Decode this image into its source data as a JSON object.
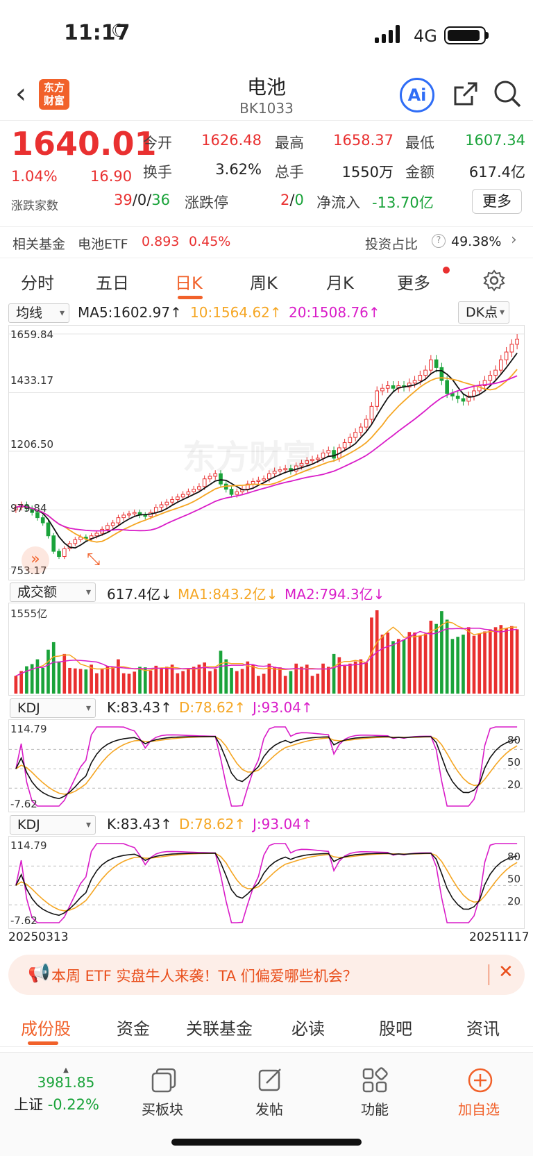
{
  "status_bar": {
    "time": "11:17",
    "network": "4G"
  },
  "nav": {
    "logo_line1": "东方",
    "logo_line2": "财富",
    "title": "电池",
    "code": "BK1033",
    "ai_label": "Ai"
  },
  "quote": {
    "price": "1640.01",
    "change_pct": "1.04%",
    "change": "16.90",
    "open_label": "今开",
    "open": "1626.48",
    "high_label": "最高",
    "high": "1658.37",
    "low_label": "最低",
    "low": "1607.34",
    "turnover_label": "换手",
    "turnover": "3.62%",
    "volume_label": "总手",
    "volume": "1550万",
    "amount_label": "金额",
    "amount": "617.4亿",
    "updown_label": "涨跌家数",
    "up_count": "39",
    "flat_count": "0",
    "down_count": "36",
    "sep": "/",
    "limit_label": "涨跌停",
    "limit_up": "2",
    "limit_down": "0",
    "netflow_label": "净流入",
    "netflow": "-13.70亿",
    "more_label": "更多"
  },
  "fund_row": {
    "label": "相关基金",
    "fund_name": "电池ETF",
    "fund_price": "0.893",
    "fund_pct": "0.45%",
    "invest_label": "投资占比",
    "invest_value": "49.38%"
  },
  "chart_tabs": [
    "分时",
    "五日",
    "日K",
    "周K",
    "月K",
    "更多"
  ],
  "ma_bar": {
    "selector": "均线",
    "ma5": "MA5:1602.97↑",
    "ma10": "10:1564.62↑",
    "ma20": "20:1508.76↑",
    "dk": "DK点"
  },
  "kline_axis": [
    "1659.84",
    "1433.17",
    "1206.50",
    "979.84",
    "753.17"
  ],
  "vol_bar": {
    "selector": "成交额",
    "value": "617.4亿↓",
    "ma1": "MA1:843.2亿↓",
    "ma2": "MA2:794.3亿↓",
    "axis_top": "1555亿"
  },
  "kdj1": {
    "selector": "KDJ",
    "k": "K:83.43↑",
    "d": "D:78.62↑",
    "j": "J:93.04↑",
    "axis_top": "114.79",
    "axis_bottom": "-7.62",
    "l80": "80",
    "l50": "50",
    "l20": "20"
  },
  "kdj2": {
    "selector": "KDJ",
    "k": "K:83.43↑",
    "d": "D:78.62↑",
    "j": "J:93.04↑",
    "axis_top": "114.79",
    "axis_bottom": "-7.62",
    "l80": "80",
    "l50": "50",
    "l20": "20"
  },
  "date_range": {
    "start": "20250313",
    "end": "20251117"
  },
  "watermark": "东方财富",
  "banner": {
    "text": "本周 ETF 实盘牛人来袭！TA 们偏爱哪些机会？"
  },
  "bottom_tabs": [
    "成份股",
    "资金",
    "关联基金",
    "必读",
    "股吧",
    "资讯"
  ],
  "footer": {
    "index_value": "3981.85",
    "index_name": "上证",
    "index_pct": "-0.22%",
    "buy_block": "买板块",
    "post": "发帖",
    "func": "功能",
    "add_fav": "加自选"
  },
  "colors": {
    "up": "#e93030",
    "down": "#1aa33a",
    "accent": "#f1612a",
    "ma10": "#f5a623",
    "ma20": "#d91cc8"
  },
  "chart_data": {
    "type": "candlestick",
    "start_date": "20250313",
    "end_date": "20251117",
    "y_ticks": [
      1659.84,
      1433.17,
      1206.5,
      979.84,
      753.17
    ],
    "ylim": [
      753.17,
      1659.84
    ],
    "close": [
      990,
      1000,
      985,
      970,
      950,
      930,
      880,
      820,
      800,
      830,
      850,
      865,
      875,
      870,
      880,
      890,
      905,
      920,
      930,
      950,
      960,
      965,
      970,
      960,
      955,
      970,
      990,
      1000,
      1010,
      1020,
      1030,
      1040,
      1050,
      1060,
      1070,
      1100,
      1110,
      1120,
      1080,
      1060,
      1040,
      1050,
      1060,
      1080,
      1090,
      1095,
      1100,
      1120,
      1130,
      1135,
      1140,
      1130,
      1150,
      1160,
      1170,
      1175,
      1180,
      1200,
      1210,
      1180,
      1220,
      1240,
      1260,
      1280,
      1300,
      1330,
      1380,
      1440,
      1450,
      1460,
      1450,
      1460,
      1455,
      1470,
      1480,
      1500,
      1520,
      1560,
      1530,
      1480,
      1430,
      1420,
      1410,
      1400,
      1420,
      1440,
      1460,
      1480,
      1500,
      1520,
      1560,
      1590,
      1620,
      1640
    ],
    "ma5_last": 1602.97,
    "ma10_last": 1564.62,
    "ma20_last": 1508.76,
    "volume_last": "617.4亿",
    "volume_top": "1555亿",
    "kdj_last": {
      "K": 83.43,
      "D": 78.62,
      "J": 93.04
    }
  }
}
